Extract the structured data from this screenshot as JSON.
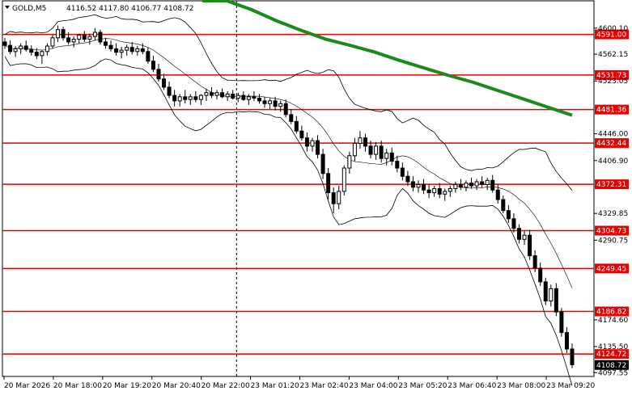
{
  "chart_data": {
    "type": "candlestick",
    "header": {
      "symbol": "GOLD,M5",
      "ohlc": "4116.52 4117.80 4106.77 4108.72"
    },
    "y_axis": {
      "range": [
        4092,
        4640
      ],
      "ticks": [
        "4600.10",
        "4562.15",
        "4523.05",
        "4446.00",
        "4406.90",
        "4329.85",
        "4290.75",
        "4174.60",
        "4135.50",
        "4097.55"
      ]
    },
    "x_axis": {
      "ticks": [
        "20 Mar 2026",
        "20 Mar 18:00",
        "20 Mar 19:20",
        "20 Mar 20:40",
        "20 Mar 22:00",
        "23 Mar 01:20",
        "23 Mar 02:40",
        "23 Mar 04:00",
        "23 Mar 05:20",
        "23 Mar 06:40",
        "23 Mar 08:00",
        "23 Mar 09:20"
      ]
    },
    "levels": [
      "4591.00",
      "4531.73",
      "4481.36",
      "4432.44",
      "4372.31",
      "4304.73",
      "4249.45",
      "4186.82",
      "4124.72"
    ],
    "current_price": "4108.72",
    "series": [
      {
        "kind": "ma",
        "values": [
          4663,
          4645,
          4627,
          4611,
          4597,
          4584,
          4575,
          4565,
          4553,
          4542,
          4531,
          4521,
          4509,
          4497,
          4485,
          4473
        ]
      },
      {
        "kind": "candles",
        "ohlc": [
          [
            4580,
            4586,
            4570,
            4575
          ],
          [
            4575,
            4582,
            4562,
            4566
          ],
          [
            4566,
            4574,
            4558,
            4570
          ],
          [
            4570,
            4578,
            4562,
            4574
          ],
          [
            4574,
            4582,
            4566,
            4569
          ],
          [
            4569,
            4575,
            4560,
            4565
          ],
          [
            4565,
            4571,
            4555,
            4560
          ],
          [
            4560,
            4568,
            4548,
            4566
          ],
          [
            4566,
            4578,
            4560,
            4574
          ],
          [
            4574,
            4590,
            4570,
            4586
          ],
          [
            4586,
            4604,
            4580,
            4598
          ],
          [
            4598,
            4602,
            4582,
            4586
          ],
          [
            4586,
            4594,
            4576,
            4580
          ],
          [
            4580,
            4588,
            4572,
            4584
          ],
          [
            4584,
            4592,
            4578,
            4590
          ],
          [
            4590,
            4596,
            4580,
            4584
          ],
          [
            4584,
            4592,
            4576,
            4588
          ],
          [
            4588,
            4600,
            4582,
            4594
          ],
          [
            4594,
            4598,
            4576,
            4580
          ],
          [
            4580,
            4586,
            4570,
            4575
          ],
          [
            4575,
            4582,
            4566,
            4570
          ],
          [
            4570,
            4578,
            4560,
            4565
          ],
          [
            4565,
            4573,
            4556,
            4568
          ],
          [
            4568,
            4576,
            4560,
            4572
          ],
          [
            4572,
            4580,
            4562,
            4566
          ],
          [
            4566,
            4574,
            4560,
            4570
          ],
          [
            4570,
            4578,
            4562,
            4566
          ],
          [
            4566,
            4572,
            4548,
            4552
          ],
          [
            4552,
            4560,
            4536,
            4540
          ],
          [
            4540,
            4548,
            4522,
            4526
          ],
          [
            4526,
            4534,
            4510,
            4514
          ],
          [
            4514,
            4522,
            4498,
            4502
          ],
          [
            4502,
            4510,
            4486,
            4494
          ],
          [
            4494,
            4504,
            4486,
            4500
          ],
          [
            4500,
            4510,
            4490,
            4496
          ],
          [
            4496,
            4504,
            4488,
            4500
          ],
          [
            4500,
            4508,
            4492,
            4496
          ],
          [
            4496,
            4504,
            4488,
            4502
          ],
          [
            4502,
            4512,
            4494,
            4506
          ],
          [
            4506,
            4514,
            4498,
            4502
          ],
          [
            4502,
            4510,
            4496,
            4506
          ],
          [
            4506,
            4512,
            4498,
            4500
          ],
          [
            4500,
            4508,
            4494,
            4504
          ],
          [
            4504,
            4510,
            4496,
            4498
          ],
          [
            4498,
            4506,
            4492,
            4502
          ],
          [
            4502,
            4508,
            4494,
            4496
          ],
          [
            4496,
            4504,
            4488,
            4500
          ],
          [
            4500,
            4508,
            4494,
            4498
          ],
          [
            4498,
            4504,
            4490,
            4494
          ],
          [
            4494,
            4500,
            4484,
            4490
          ],
          [
            4490,
            4498,
            4482,
            4494
          ],
          [
            4494,
            4500,
            4480,
            4486
          ],
          [
            4486,
            4494,
            4478,
            4490
          ],
          [
            4490,
            4496,
            4470,
            4474
          ],
          [
            4474,
            4482,
            4460,
            4464
          ],
          [
            4464,
            4472,
            4446,
            4450
          ],
          [
            4450,
            4458,
            4436,
            4440
          ],
          [
            4440,
            4448,
            4420,
            4428
          ],
          [
            4428,
            4440,
            4420,
            4436
          ],
          [
            4436,
            4444,
            4410,
            4416
          ],
          [
            4416,
            4424,
            4380,
            4388
          ],
          [
            4388,
            4396,
            4350,
            4360
          ],
          [
            4360,
            4368,
            4330,
            4344
          ],
          [
            4344,
            4370,
            4336,
            4362
          ],
          [
            4362,
            4400,
            4356,
            4396
          ],
          [
            4396,
            4420,
            4388,
            4414
          ],
          [
            4414,
            4440,
            4406,
            4432
          ],
          [
            4432,
            4450,
            4424,
            4440
          ],
          [
            4440,
            4446,
            4420,
            4428
          ],
          [
            4428,
            4436,
            4410,
            4416
          ],
          [
            4416,
            4434,
            4408,
            4428
          ],
          [
            4428,
            4436,
            4404,
            4410
          ],
          [
            4410,
            4424,
            4400,
            4418
          ],
          [
            4418,
            4426,
            4400,
            4406
          ],
          [
            4406,
            4414,
            4390,
            4396
          ],
          [
            4396,
            4404,
            4378,
            4384
          ],
          [
            4384,
            4392,
            4370,
            4376
          ],
          [
            4376,
            4384,
            4362,
            4368
          ],
          [
            4368,
            4378,
            4360,
            4372
          ],
          [
            4372,
            4380,
            4358,
            4364
          ],
          [
            4364,
            4372,
            4352,
            4360
          ],
          [
            4360,
            4370,
            4354,
            4366
          ],
          [
            4366,
            4374,
            4352,
            4358
          ],
          [
            4358,
            4366,
            4348,
            4362
          ],
          [
            4362,
            4370,
            4354,
            4366
          ],
          [
            4366,
            4376,
            4360,
            4372
          ],
          [
            4372,
            4380,
            4364,
            4368
          ],
          [
            4368,
            4378,
            4362,
            4374
          ],
          [
            4374,
            4382,
            4366,
            4370
          ],
          [
            4370,
            4380,
            4364,
            4376
          ],
          [
            4376,
            4384,
            4368,
            4372
          ],
          [
            4372,
            4382,
            4364,
            4378
          ],
          [
            4378,
            4386,
            4360,
            4364
          ],
          [
            4364,
            4372,
            4344,
            4350
          ],
          [
            4350,
            4356,
            4330,
            4334
          ],
          [
            4334,
            4342,
            4316,
            4322
          ],
          [
            4322,
            4330,
            4302,
            4308
          ],
          [
            4308,
            4314,
            4286,
            4292
          ],
          [
            4292,
            4304,
            4284,
            4298
          ],
          [
            4298,
            4306,
            4262,
            4268
          ],
          [
            4268,
            4276,
            4244,
            4250
          ],
          [
            4250,
            4258,
            4224,
            4230
          ],
          [
            4230,
            4236,
            4196,
            4202
          ],
          [
            4202,
            4226,
            4194,
            4220
          ],
          [
            4220,
            4228,
            4180,
            4186
          ],
          [
            4186,
            4192,
            4150,
            4156
          ],
          [
            4156,
            4164,
            4126,
            4132
          ],
          [
            4132,
            4140,
            4104,
            4109
          ]
        ]
      }
    ]
  }
}
